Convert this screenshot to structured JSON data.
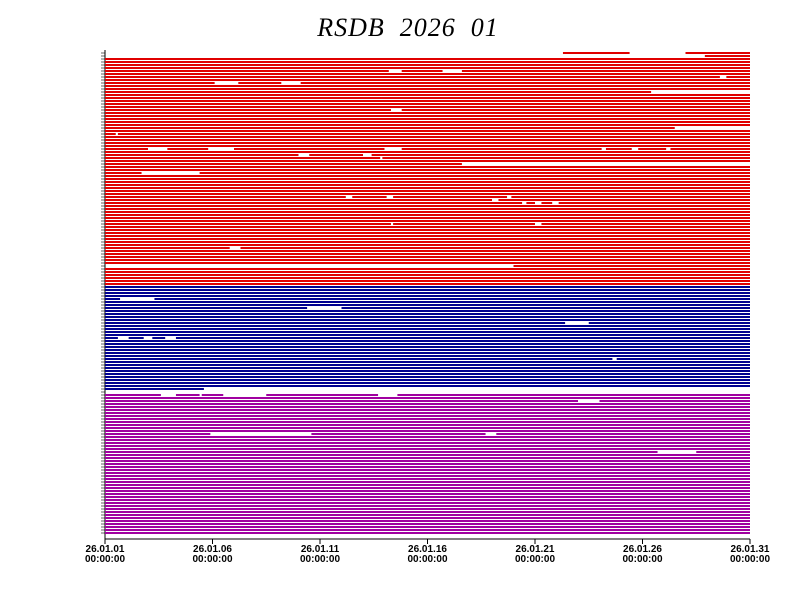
{
  "chart_data": {
    "type": "availability",
    "title": "RSDB  2026  01",
    "xlim": [
      1,
      31
    ],
    "xticks": [
      {
        "value": 1,
        "label": "26.01.01\n00:00:00"
      },
      {
        "value": 6,
        "label": "26.01.06\n00:00:00"
      },
      {
        "value": 11,
        "label": "26.01.11\n00:00:00"
      },
      {
        "value": 16,
        "label": "26.01.16\n00:00:00"
      },
      {
        "value": 21,
        "label": "26.01.21\n00:00:00"
      },
      {
        "value": 26,
        "label": "26.01.26\n00:00:00"
      },
      {
        "value": 31,
        "label": "26.01.31\n00:00:00"
      }
    ],
    "groups": [
      {
        "color": "#e00000",
        "rows": [
          [
            [
              22.3,
              25.4
            ],
            [
              28,
              31
            ]
          ],
          [
            [
              28.9,
              31
            ]
          ],
          [
            [
              1,
              31
            ]
          ],
          [
            [
              1,
              31
            ]
          ],
          [
            [
              1,
              31
            ]
          ],
          [
            [
              1,
              31
            ]
          ],
          [
            [
              1,
              14.2
            ],
            [
              14.8,
              16.7
            ],
            [
              17.6,
              31
            ]
          ],
          [
            [
              1,
              31
            ]
          ],
          [
            [
              1,
              29.6
            ],
            [
              29.9,
              31
            ]
          ],
          [
            [
              1,
              31
            ]
          ],
          [
            [
              1,
              6.1
            ],
            [
              7.2,
              9.2
            ],
            [
              10.1,
              31
            ]
          ],
          [
            [
              1,
              31
            ]
          ],
          [
            [
              1,
              31
            ]
          ],
          [
            [
              1,
              26.4
            ],
            [
              31,
              31
            ]
          ],
          [
            [
              1,
              31
            ]
          ],
          [
            [
              1,
              31
            ]
          ],
          [
            [
              1,
              31
            ]
          ],
          [
            [
              1,
              31
            ]
          ],
          [
            [
              1,
              31
            ]
          ],
          [
            [
              1,
              14.3
            ],
            [
              14.8,
              31
            ]
          ],
          [
            [
              1,
              31
            ]
          ],
          [
            [
              1,
              31
            ]
          ],
          [
            [
              1,
              31
            ]
          ],
          [
            [
              1,
              31
            ]
          ],
          [
            [
              1,
              31
            ]
          ],
          [
            [
              1,
              27.5
            ],
            [
              31,
              31
            ]
          ],
          [
            [
              1,
              31
            ]
          ],
          [
            [
              1,
              1.5
            ],
            [
              1.6,
              31
            ]
          ],
          [
            [
              1,
              31
            ]
          ],
          [
            [
              1,
              31
            ]
          ],
          [
            [
              1,
              31
            ]
          ],
          [
            [
              1,
              31
            ]
          ],
          [
            [
              1,
              3.0
            ],
            [
              3.9,
              5.8
            ],
            [
              7.0,
              14.0
            ],
            [
              14.8,
              24.1
            ],
            [
              24.3,
              25.5
            ],
            [
              25.8,
              27.1
            ],
            [
              27.3,
              31
            ]
          ],
          [
            [
              1,
              31
            ]
          ],
          [
            [
              1,
              10.0
            ],
            [
              10.5,
              13.0
            ],
            [
              13.4,
              31
            ]
          ],
          [
            [
              1,
              13.8
            ],
            [
              13.9,
              31
            ]
          ],
          [
            [
              1,
              31
            ]
          ],
          [
            [
              1,
              17.6
            ],
            [
              31,
              31
            ]
          ],
          [
            [
              1,
              31
            ]
          ],
          [
            [
              1,
              31
            ]
          ],
          [
            [
              1,
              2.7
            ],
            [
              5.4,
              31
            ]
          ],
          [
            [
              1,
              31
            ]
          ],
          [
            [
              1,
              31
            ]
          ],
          [
            [
              1,
              31
            ]
          ],
          [
            [
              1,
              31
            ]
          ],
          [
            [
              1,
              31
            ]
          ],
          [
            [
              1,
              31
            ]
          ],
          [
            [
              1,
              31
            ]
          ],
          [
            [
              1,
              12.2
            ],
            [
              12.5,
              14.1
            ],
            [
              14.4,
              19.7
            ],
            [
              19.9,
              31
            ]
          ],
          [
            [
              1,
              19.0
            ],
            [
              19.3,
              31
            ]
          ],
          [
            [
              1,
              20.4
            ],
            [
              20.6,
              21.0
            ],
            [
              21.3,
              21.8
            ],
            [
              22.1,
              31
            ]
          ],
          [
            [
              1,
              31
            ]
          ],
          [
            [
              1,
              31
            ]
          ],
          [
            [
              1,
              31
            ]
          ],
          [
            [
              1,
              31
            ]
          ],
          [
            [
              1,
              31
            ]
          ],
          [
            [
              1,
              31
            ]
          ],
          [
            [
              1,
              14.3
            ],
            [
              14.4,
              21.0
            ],
            [
              21.3,
              31
            ]
          ],
          [
            [
              1,
              31
            ]
          ],
          [
            [
              1,
              31
            ]
          ],
          [
            [
              1,
              31
            ]
          ],
          [
            [
              1,
              31
            ]
          ],
          [
            [
              1,
              31
            ]
          ],
          [
            [
              1,
              31
            ]
          ],
          [
            [
              1,
              31
            ]
          ],
          [
            [
              1,
              6.8
            ],
            [
              7.3,
              31
            ]
          ],
          [
            [
              1,
              31
            ]
          ],
          [
            [
              1,
              31
            ]
          ],
          [
            [
              1,
              31
            ]
          ],
          [
            [
              1,
              31
            ]
          ],
          [
            [
              1,
              31
            ]
          ],
          [
            [
              20,
              31
            ]
          ],
          [
            [
              1,
              31
            ]
          ],
          [
            [
              1,
              31
            ]
          ],
          [
            [
              1,
              31
            ]
          ],
          [
            [
              1,
              31
            ]
          ],
          [
            [
              1,
              31
            ]
          ],
          [
            [
              1,
              31
            ]
          ]
        ]
      },
      {
        "color": "#000090",
        "rows": [
          [
            [
              1,
              31
            ]
          ],
          [
            [
              1,
              31
            ]
          ],
          [
            [
              1,
              31
            ]
          ],
          [
            [
              1,
              31
            ]
          ],
          [
            [
              1,
              1.7
            ],
            [
              3.3,
              31
            ]
          ],
          [
            [
              1,
              31
            ]
          ],
          [
            [
              1,
              31
            ]
          ],
          [
            [
              1,
              10.4
            ],
            [
              12.0,
              31
            ]
          ],
          [
            [
              1,
              31
            ]
          ],
          [
            [
              1,
              31
            ]
          ],
          [
            [
              1,
              31
            ]
          ],
          [
            [
              1,
              31
            ]
          ],
          [
            [
              1,
              22.4
            ],
            [
              23.5,
              31
            ]
          ],
          [
            [
              1,
              31
            ]
          ],
          [
            [
              1,
              31
            ]
          ],
          [
            [
              1,
              31
            ]
          ],
          [
            [
              1,
              31
            ]
          ],
          [
            [
              1,
              1.6
            ],
            [
              2.1,
              2.8
            ],
            [
              3.2,
              3.8
            ],
            [
              4.3,
              31
            ]
          ],
          [
            [
              1,
              31
            ]
          ],
          [
            [
              1,
              31
            ]
          ],
          [
            [
              1,
              31
            ]
          ],
          [
            [
              1,
              31
            ]
          ],
          [
            [
              1,
              31
            ]
          ],
          [
            [
              1,
              31
            ]
          ],
          [
            [
              1,
              24.6
            ],
            [
              24.8,
              31
            ]
          ],
          [
            [
              1,
              31
            ]
          ],
          [
            [
              1,
              31
            ]
          ],
          [
            [
              1,
              31
            ]
          ],
          [
            [
              1,
              31
            ]
          ],
          [
            [
              1,
              31
            ]
          ],
          [
            [
              1,
              31
            ]
          ],
          [
            [
              1,
              31
            ]
          ],
          [
            [
              1,
              31
            ]
          ],
          [
            [
              1,
              31
            ]
          ],
          [
            [
              1,
              5.6
            ]
          ],
          []
        ]
      },
      {
        "color": "#a000a0",
        "rows": [
          [
            [
              1,
              3.6
            ],
            [
              4.3,
              5.4
            ],
            [
              5.5,
              6.5
            ],
            [
              8.5,
              13.7
            ],
            [
              14.6,
              31
            ]
          ],
          [
            [
              1,
              31
            ]
          ],
          [
            [
              1,
              23.0
            ],
            [
              24.0,
              31
            ]
          ],
          [
            [
              1,
              31
            ]
          ],
          [
            [
              1,
              31
            ]
          ],
          [
            [
              1,
              31
            ]
          ],
          [
            [
              1,
              31
            ]
          ],
          [
            [
              1,
              31
            ]
          ],
          [
            [
              1,
              31
            ]
          ],
          [
            [
              1,
              31
            ]
          ],
          [
            [
              1,
              31
            ]
          ],
          [
            [
              1,
              31
            ]
          ],
          [
            [
              1,
              31
            ]
          ],
          [
            [
              1,
              5.9
            ],
            [
              10.6,
              18.7
            ],
            [
              19.2,
              31
            ]
          ],
          [
            [
              1,
              31
            ]
          ],
          [
            [
              1,
              31
            ]
          ],
          [
            [
              1,
              31
            ]
          ],
          [
            [
              1,
              31
            ]
          ],
          [
            [
              1,
              31
            ]
          ],
          [
            [
              1,
              26.7
            ],
            [
              28.5,
              31
            ]
          ],
          [
            [
              1,
              31
            ]
          ],
          [
            [
              1,
              31
            ]
          ],
          [
            [
              1,
              31
            ]
          ],
          [
            [
              1,
              31
            ]
          ],
          [
            [
              1,
              31
            ]
          ],
          [
            [
              1,
              31
            ]
          ],
          [
            [
              1,
              31
            ]
          ],
          [
            [
              1,
              31
            ]
          ],
          [
            [
              1,
              31
            ]
          ],
          [
            [
              1,
              31
            ]
          ],
          [
            [
              1,
              31
            ]
          ],
          [
            [
              1,
              31
            ]
          ],
          [
            [
              1,
              31
            ]
          ],
          [
            [
              1,
              31
            ]
          ],
          [
            [
              1,
              31
            ]
          ],
          [
            [
              1,
              31
            ]
          ],
          [
            [
              1,
              31
            ]
          ],
          [
            [
              1,
              31
            ]
          ],
          [
            [
              1,
              31
            ]
          ],
          [
            [
              1,
              31
            ]
          ],
          [
            [
              1,
              31
            ]
          ],
          [
            [
              1,
              31
            ]
          ],
          [
            [
              1,
              31
            ]
          ],
          [
            [
              1,
              31
            ]
          ],
          [
            [
              1,
              31
            ]
          ],
          [
            [
              1,
              31
            ]
          ],
          [
            [
              1,
              31
            ]
          ]
        ]
      }
    ]
  }
}
